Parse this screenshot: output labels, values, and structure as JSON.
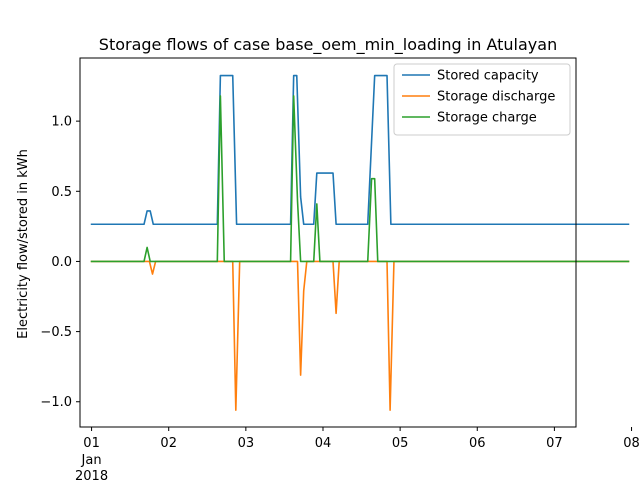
{
  "chart_data": {
    "type": "line",
    "title": "Storage flows of case base_oem_min_loading in Atulayan",
    "xlabel": "",
    "ylabel": "Electricity flow/stored in kWh",
    "x_unit": "days (Jan 2018)",
    "xlim": [
      0.85,
      7.28
    ],
    "ylim": [
      -1.18,
      1.45
    ],
    "x_ticks": [
      {
        "value": 1,
        "label": "01",
        "sublabel": "Jan\n2018"
      },
      {
        "value": 2,
        "label": "02"
      },
      {
        "value": 3,
        "label": "03"
      },
      {
        "value": 4,
        "label": "04"
      },
      {
        "value": 5,
        "label": "05"
      },
      {
        "value": 6,
        "label": "06"
      },
      {
        "value": 7,
        "label": "07"
      },
      {
        "value": 8,
        "label": "08"
      }
    ],
    "y_ticks": [
      {
        "value": 1.0,
        "label": "1.0"
      },
      {
        "value": 0.5,
        "label": "0.5"
      },
      {
        "value": 0.0,
        "label": "0.0"
      },
      {
        "value": -0.5,
        "label": "−0.5"
      },
      {
        "value": -1.0,
        "label": "−1.0"
      }
    ],
    "grid": false,
    "legend_position": "top-right",
    "series": [
      {
        "name": "Stored capacity",
        "color": "#1f77b4",
        "points": [
          [
            1.0,
            0.265
          ],
          [
            1.68,
            0.265
          ],
          [
            1.72,
            0.36
          ],
          [
            1.76,
            0.36
          ],
          [
            1.8,
            0.265
          ],
          [
            2.63,
            0.265
          ],
          [
            2.67,
            1.325
          ],
          [
            2.83,
            1.325
          ],
          [
            2.88,
            0.265
          ],
          [
            3.58,
            0.265
          ],
          [
            3.62,
            1.325
          ],
          [
            3.66,
            1.325
          ],
          [
            3.71,
            0.46
          ],
          [
            3.75,
            0.265
          ],
          [
            3.88,
            0.265
          ],
          [
            3.92,
            0.63
          ],
          [
            4.13,
            0.63
          ],
          [
            4.17,
            0.265
          ],
          [
            4.58,
            0.265
          ],
          [
            4.67,
            1.325
          ],
          [
            4.83,
            1.325
          ],
          [
            4.88,
            0.265
          ],
          [
            7.96,
            0.265
          ]
        ]
      },
      {
        "name": "Storage discharge",
        "color": "#ff7f0e",
        "points": [
          [
            1.0,
            0.0
          ],
          [
            1.75,
            0.0
          ],
          [
            1.79,
            -0.09
          ],
          [
            1.83,
            0.0
          ],
          [
            2.83,
            0.0
          ],
          [
            2.87,
            -1.06
          ],
          [
            2.92,
            0.0
          ],
          [
            3.67,
            0.0
          ],
          [
            3.71,
            -0.81
          ],
          [
            3.75,
            -0.21
          ],
          [
            3.79,
            0.0
          ],
          [
            4.13,
            0.0
          ],
          [
            4.17,
            -0.37
          ],
          [
            4.21,
            0.0
          ],
          [
            4.83,
            0.0
          ],
          [
            4.87,
            -1.06
          ],
          [
            4.92,
            0.0
          ],
          [
            7.96,
            0.0
          ]
        ]
      },
      {
        "name": "Storage charge",
        "color": "#2ca02c",
        "points": [
          [
            1.0,
            0.0
          ],
          [
            1.68,
            0.0
          ],
          [
            1.72,
            0.1
          ],
          [
            1.76,
            0.0
          ],
          [
            2.63,
            0.0
          ],
          [
            2.67,
            1.18
          ],
          [
            2.72,
            0.0
          ],
          [
            3.58,
            0.0
          ],
          [
            3.62,
            1.18
          ],
          [
            3.67,
            0.43
          ],
          [
            3.71,
            0.0
          ],
          [
            3.88,
            0.0
          ],
          [
            3.92,
            0.41
          ],
          [
            3.96,
            0.0
          ],
          [
            4.58,
            0.0
          ],
          [
            4.63,
            0.59
          ],
          [
            4.67,
            0.59
          ],
          [
            4.71,
            0.0
          ],
          [
            7.96,
            0.0
          ]
        ]
      }
    ]
  }
}
